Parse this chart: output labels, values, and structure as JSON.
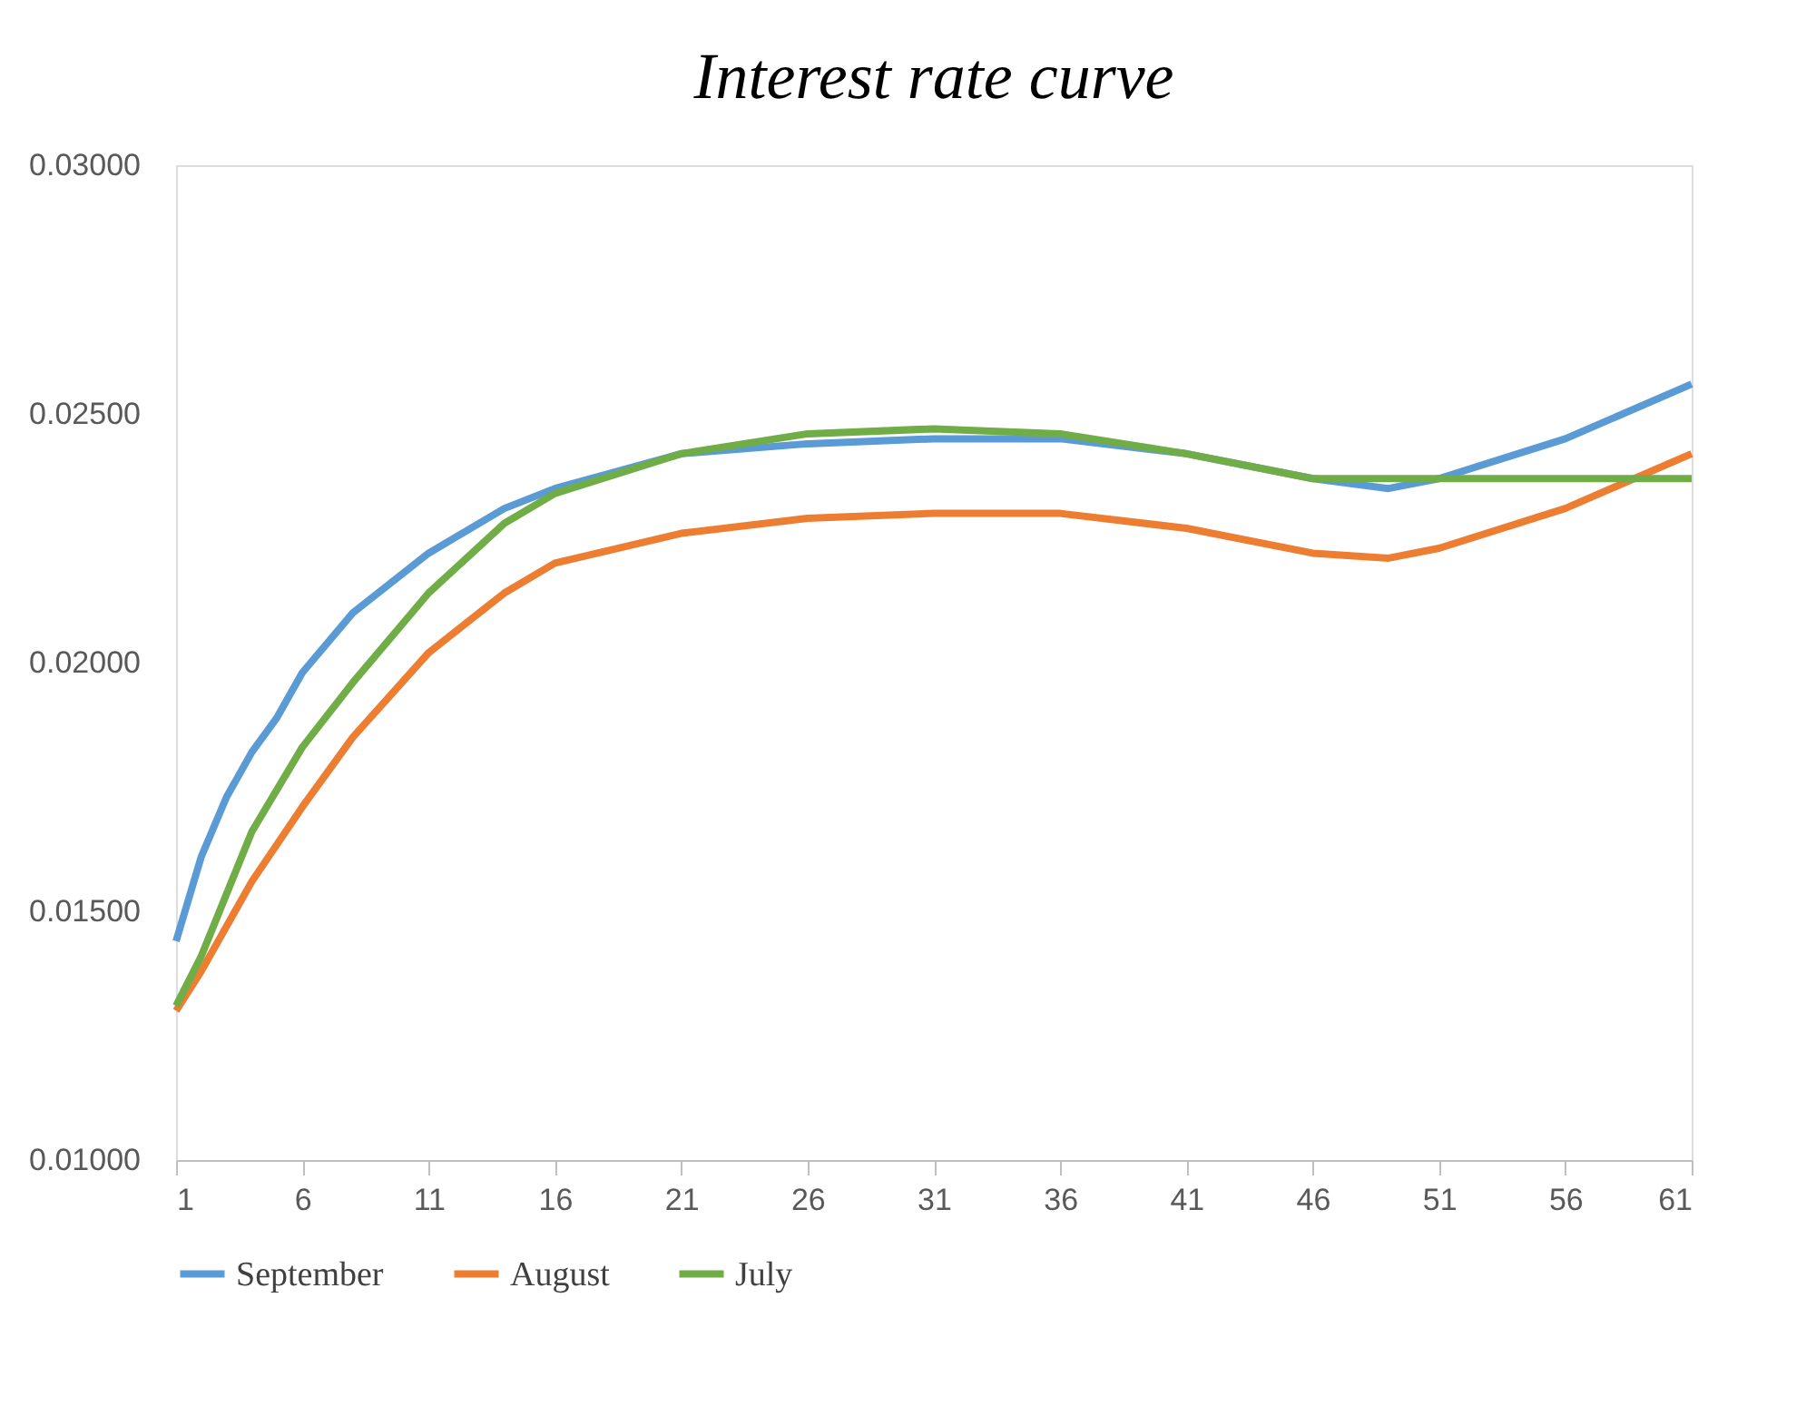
{
  "chart_data": {
    "type": "line",
    "title": "Interest rate curve",
    "xlim": [
      1,
      61
    ],
    "xticks": [
      1,
      6,
      11,
      16,
      21,
      26,
      31,
      36,
      41,
      46,
      51,
      56,
      61
    ],
    "ylim": [
      0.01,
      0.03
    ],
    "yticks": [
      {
        "value": 0.01,
        "label": "0.01000"
      },
      {
        "value": 0.015,
        "label": "0.01500"
      },
      {
        "value": 0.02,
        "label": "0.02000"
      },
      {
        "value": 0.025,
        "label": "0.02500"
      },
      {
        "value": 0.03,
        "label": "0.03000"
      }
    ],
    "grid": false,
    "legend": "bottom",
    "marker": "none",
    "line_style": "solid",
    "series": [
      {
        "name": "September",
        "color": "#5b9bd5",
        "x": [
          1,
          2,
          3,
          4,
          5,
          6,
          8,
          11,
          14,
          16,
          21,
          26,
          31,
          36,
          41,
          46,
          49,
          51,
          56,
          61
        ],
        "values": [
          0.0144,
          0.0161,
          0.0173,
          0.0182,
          0.0189,
          0.0198,
          0.021,
          0.0222,
          0.0231,
          0.0235,
          0.0242,
          0.0244,
          0.0245,
          0.0245,
          0.0242,
          0.0237,
          0.0235,
          0.0237,
          0.0245,
          0.0256
        ]
      },
      {
        "name": "August",
        "color": "#ed7d31",
        "x": [
          1,
          2,
          4,
          6,
          8,
          11,
          14,
          16,
          21,
          26,
          31,
          36,
          41,
          46,
          49,
          51,
          56,
          61
        ],
        "values": [
          0.013,
          0.0138,
          0.0156,
          0.0171,
          0.0185,
          0.0202,
          0.0214,
          0.022,
          0.0226,
          0.0229,
          0.023,
          0.023,
          0.0227,
          0.0222,
          0.0221,
          0.0223,
          0.0231,
          0.0242
        ]
      },
      {
        "name": "July",
        "color": "#70ad47",
        "x": [
          1,
          2,
          4,
          6,
          8,
          11,
          14,
          16,
          21,
          26,
          31,
          36,
          41,
          46,
          49,
          51,
          56,
          61
        ],
        "values": [
          0.0131,
          0.0141,
          0.0166,
          0.0183,
          0.0196,
          0.0214,
          0.0228,
          0.0234,
          0.0242,
          0.0246,
          0.0247,
          0.0246,
          0.0242,
          0.0237,
          0.0237,
          0.0237,
          0.0237,
          0.0237
        ]
      }
    ]
  }
}
